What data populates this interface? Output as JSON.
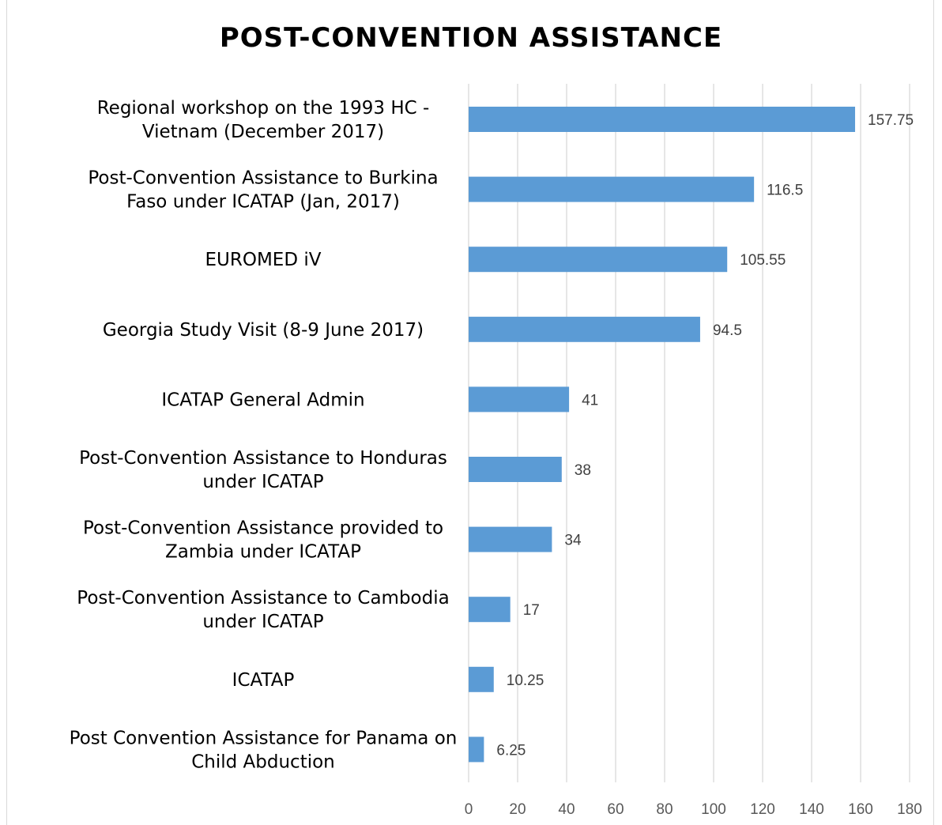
{
  "chart_data": {
    "type": "bar",
    "orientation": "horizontal",
    "title": "POST-CONVENTION ASSISTANCE",
    "categories": [
      [
        "Regional workshop on the 1993 HC -",
        "Vietnam (December 2017)"
      ],
      [
        "Post-Convention Assistance to Burkina",
        "Faso under ICATAP (Jan, 2017)"
      ],
      [
        "EUROMED iV"
      ],
      [
        "Georgia Study Visit (8-9 June 2017)"
      ],
      [
        "ICATAP General Admin"
      ],
      [
        "Post-Convention Assistance to Honduras",
        "under ICATAP"
      ],
      [
        "Post-Convention Assistance provided to",
        "Zambia under ICATAP"
      ],
      [
        "Post-Convention Assistance to Cambodia",
        "under ICATAP"
      ],
      [
        "ICATAP"
      ],
      [
        "Post Convention Assistance for Panama on",
        "Child Abduction"
      ]
    ],
    "values": [
      157.75,
      116.5,
      105.55,
      94.5,
      41,
      38,
      34,
      17,
      10.25,
      6.25
    ],
    "value_labels": [
      "157.75",
      "116.5",
      "105.55",
      "94.5",
      "41",
      "38",
      "34",
      "17",
      "10.25",
      "6.25"
    ],
    "xlim": [
      0,
      180
    ],
    "xticks": [
      0,
      20,
      40,
      60,
      80,
      100,
      120,
      140,
      160,
      180
    ],
    "xlabel": "",
    "ylabel": "",
    "grid": "vertical",
    "legend": "none",
    "bar_color": "#5b9bd5",
    "grid_color": "#d9d9d9"
  }
}
